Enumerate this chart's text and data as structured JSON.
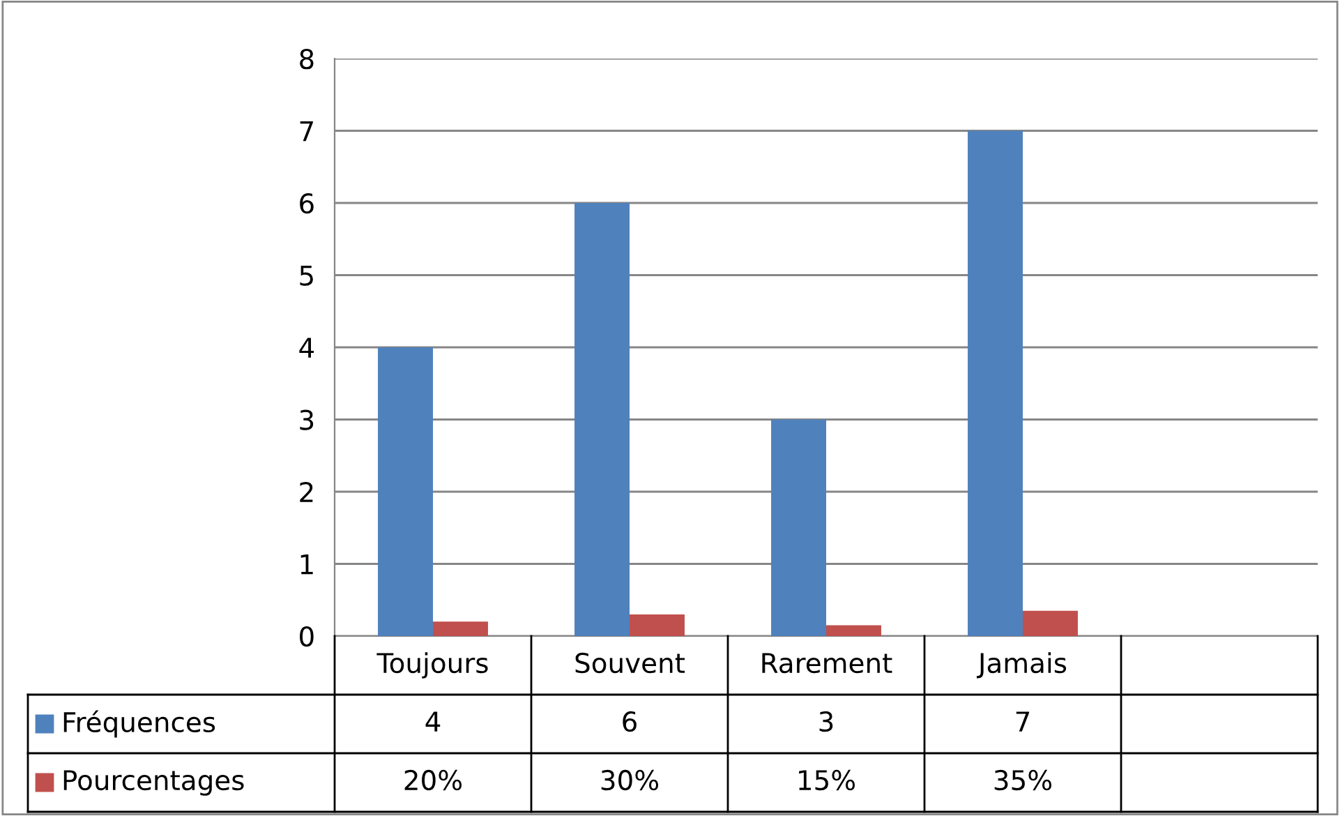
{
  "chart_data": {
    "type": "bar",
    "categories": [
      "Toujours",
      "Souvent",
      "Rarement",
      "Jamais",
      null
    ],
    "series": [
      {
        "name": "Fréquences",
        "color": "#4f81bd",
        "values": [
          4,
          6,
          3,
          7,
          null
        ],
        "value_labels": [
          "4",
          "6",
          "3",
          "7",
          null
        ]
      },
      {
        "name": "Pourcentages",
        "color": "#c0504d",
        "values": [
          0.2,
          0.3,
          0.15,
          0.35,
          null
        ],
        "value_labels": [
          "20%",
          "30%",
          "15%",
          "35%",
          null
        ]
      }
    ],
    "ylim": [
      0,
      8
    ],
    "yticks": [
      0,
      1,
      2,
      3,
      4,
      5,
      6,
      7,
      8
    ],
    "grid": "y",
    "legend": "bottom left"
  }
}
